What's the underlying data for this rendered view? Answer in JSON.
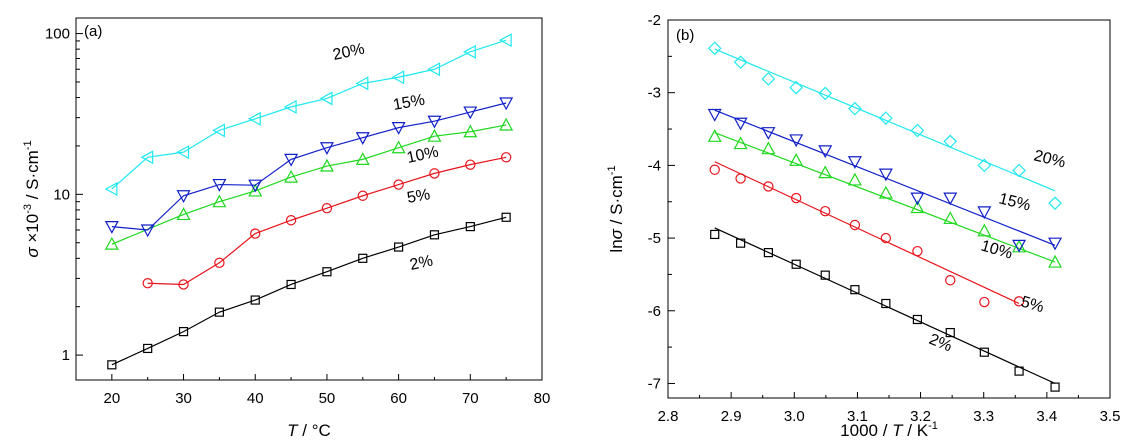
{
  "chart_data": [
    {
      "type": "line",
      "panel_label": "(a)",
      "xlabel_italic": "T",
      "xlabel_rest": " / °C",
      "ylabel_sym": "σ",
      "ylabel_rest": " ×10",
      "ylabel_exp": "-3",
      "ylabel_unit": " / S·cm",
      "ylabel_unit_exp": "-1",
      "y_scale": "log",
      "xlim": [
        15,
        80
      ],
      "ylim": [
        0.7,
        125
      ],
      "x_ticks": [
        20,
        30,
        40,
        50,
        60,
        70,
        80
      ],
      "x_tick_labels": [
        "20",
        "30",
        "40",
        "50",
        "60",
        "70",
        "80"
      ],
      "y_ticks": [
        1,
        10,
        100
      ],
      "y_tick_labels": [
        "1",
        "10",
        "100"
      ],
      "series": [
        {
          "name": "2%",
          "color": "#000000",
          "marker": "square",
          "x": [
            20,
            25,
            30,
            35,
            40,
            45,
            50,
            55,
            60,
            65,
            70,
            75
          ],
          "y": [
            0.87,
            1.1,
            1.4,
            1.85,
            2.2,
            2.75,
            3.3,
            4.0,
            4.7,
            5.6,
            6.3,
            7.2
          ]
        },
        {
          "name": "5%",
          "color": "#e8141c",
          "marker": "circle",
          "x": [
            25,
            30,
            35,
            40,
            45,
            50,
            55,
            60,
            65,
            70,
            75
          ],
          "y": [
            2.8,
            2.75,
            3.75,
            5.7,
            6.9,
            8.2,
            9.8,
            11.5,
            13.5,
            15.3,
            17.0
          ]
        },
        {
          "name": "10%",
          "color": "#1fd81f",
          "marker": "triangle-up",
          "x": [
            20,
            30,
            35,
            40,
            45,
            50,
            55,
            60,
            65,
            70,
            75
          ],
          "y": [
            4.9,
            7.5,
            9.0,
            10.5,
            12.8,
            15.0,
            16.5,
            19.5,
            23.0,
            24.5,
            27.0
          ]
        },
        {
          "name": "15%",
          "color": "#1020c8",
          "marker": "triangle-down",
          "x": [
            20,
            25,
            30,
            35,
            40,
            45,
            50,
            55,
            60,
            65,
            70,
            75
          ],
          "y": [
            6.3,
            6.0,
            9.8,
            11.5,
            11.4,
            16.5,
            19.5,
            22.5,
            26.0,
            28.5,
            32.5,
            37.0
          ]
        },
        {
          "name": "20%",
          "color": "#1fe8f0",
          "marker": "triangle-left",
          "x": [
            20,
            25,
            30,
            35,
            40,
            45,
            50,
            55,
            60,
            65,
            70,
            75
          ],
          "y": [
            10.8,
            17.0,
            18.3,
            25.0,
            29.5,
            35.0,
            39.5,
            49.0,
            53.5,
            60.0,
            77.0,
            91.0
          ]
        }
      ]
    },
    {
      "type": "scatter",
      "panel_label": "(b)",
      "xlabel_pre": "1000 / ",
      "xlabel_italic": "T",
      "xlabel_rest": " / K",
      "xlabel_exp": "-1",
      "ylabel_pre": "ln",
      "ylabel_sym": "σ",
      "ylabel_rest": " / S·cm",
      "ylabel_exp": "-1",
      "xlim": [
        2.8,
        3.5
      ],
      "ylim": [
        -7.2,
        -2.0
      ],
      "x_ticks": [
        2.8,
        2.9,
        3.0,
        3.1,
        3.2,
        3.3,
        3.4,
        3.5
      ],
      "x_tick_labels": [
        "2.8",
        "2.9",
        "3.0",
        "3.1",
        "3.2",
        "3.3",
        "3.4",
        "3.5"
      ],
      "y_ticks": [
        -7,
        -6,
        -5,
        -4,
        -3,
        -2
      ],
      "y_tick_labels": [
        "-7",
        "-6",
        "-5",
        "-4",
        "-3",
        "-2"
      ],
      "series": [
        {
          "name": "2%",
          "color": "#000000",
          "marker": "square",
          "x": [
            2.874,
            2.915,
            2.959,
            3.003,
            3.049,
            3.096,
            3.145,
            3.195,
            3.247,
            3.301,
            3.356,
            3.413
          ],
          "y": [
            -4.95,
            -5.07,
            -5.2,
            -5.36,
            -5.51,
            -5.71,
            -5.9,
            -6.12,
            -6.3,
            -6.57,
            -6.83,
            -7.05
          ],
          "fit": [
            [
              2.874,
              -4.86
            ],
            [
              3.413,
              -7.0
            ]
          ]
        },
        {
          "name": "5%",
          "color": "#e8141c",
          "marker": "circle",
          "x": [
            2.874,
            2.915,
            2.959,
            3.003,
            3.049,
            3.096,
            3.145,
            3.195,
            3.247,
            3.301,
            3.356
          ],
          "y": [
            -4.06,
            -4.18,
            -4.29,
            -4.45,
            -4.63,
            -4.82,
            -5.0,
            -5.18,
            -5.58,
            -5.88,
            -5.87
          ],
          "fit": [
            [
              2.874,
              -3.95
            ],
            [
              3.356,
              -5.9
            ]
          ]
        },
        {
          "name": "10%",
          "color": "#1fd81f",
          "marker": "triangle-up",
          "x": [
            2.874,
            2.915,
            2.959,
            3.003,
            3.049,
            3.096,
            3.145,
            3.195,
            3.247,
            3.301,
            3.356,
            3.413
          ],
          "y": [
            -3.6,
            -3.7,
            -3.77,
            -3.93,
            -4.1,
            -4.2,
            -4.38,
            -4.58,
            -4.73,
            -4.9,
            -5.12,
            -5.33
          ],
          "fit": [
            [
              2.874,
              -3.55
            ],
            [
              3.413,
              -5.33
            ]
          ]
        },
        {
          "name": "15%",
          "color": "#1020c8",
          "marker": "triangle-down",
          "x": [
            2.874,
            2.915,
            2.959,
            3.003,
            3.049,
            3.096,
            3.145,
            3.195,
            3.247,
            3.301,
            3.356,
            3.413
          ],
          "y": [
            -3.3,
            -3.42,
            -3.55,
            -3.65,
            -3.8,
            -3.95,
            -4.12,
            -4.45,
            -4.45,
            -4.64,
            -5.1,
            -5.07
          ],
          "fit": [
            [
              2.874,
              -3.24
            ],
            [
              3.413,
              -5.1
            ]
          ]
        },
        {
          "name": "20%",
          "color": "#1fe8f0",
          "marker": "diamond",
          "x": [
            2.874,
            2.915,
            2.959,
            3.003,
            3.049,
            3.096,
            3.145,
            3.195,
            3.247,
            3.301,
            3.356,
            3.413
          ],
          "y": [
            -2.39,
            -2.58,
            -2.81,
            -2.93,
            -3.01,
            -3.22,
            -3.35,
            -3.52,
            -3.67,
            -4.0,
            -4.07,
            -4.52
          ],
          "fit": [
            [
              2.874,
              -2.4
            ],
            [
              3.413,
              -4.35
            ]
          ]
        }
      ]
    }
  ]
}
